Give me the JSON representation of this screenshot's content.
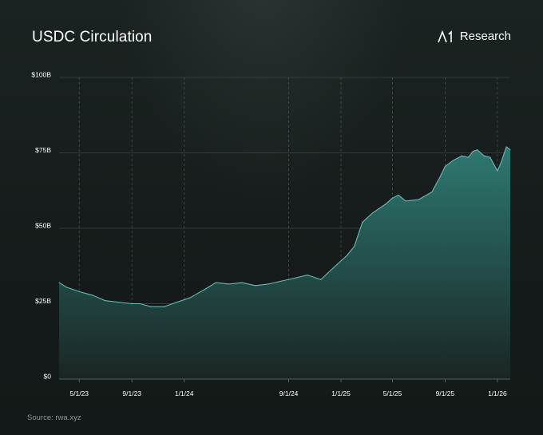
{
  "header": {
    "title": "USDC Circulation",
    "brand": "Research"
  },
  "footer": {
    "source": "Source: rwa.xyz"
  },
  "colors": {
    "accent": "#3fa398",
    "area_top": "#2f7d75",
    "area_bottom": "#1a2625",
    "line": "#5fc1b6",
    "grid": "#3a4442",
    "text": "#ffffff",
    "muted": "#8d9794"
  },
  "chart_data": {
    "type": "area",
    "title": "USDC Circulation",
    "xlabel": "",
    "ylabel": "",
    "ylim": [
      0,
      100
    ],
    "grid": true,
    "y_ticks": [
      "$0",
      "$25B",
      "$50B",
      "$75B",
      "$100B"
    ],
    "x_ticks": [
      "5/1/23",
      "9/1/23",
      "1/1/24",
      "9/1/24",
      "1/1/25",
      "5/1/25",
      "9/1/25",
      "1/1/26"
    ],
    "x_tick_dates": [
      "2023-05-01",
      "2023-09-01",
      "2024-01-01",
      "2024-09-01",
      "2025-01-01",
      "2025-05-01",
      "2025-09-01",
      "2026-01-01"
    ],
    "x_range": [
      "2023-03-15",
      "2026-01-31"
    ],
    "series": [
      {
        "points": [
          [
            "2023-03-15",
            32.0
          ],
          [
            "2023-04-01",
            30.5
          ],
          [
            "2023-05-01",
            29.0
          ],
          [
            "2023-06-01",
            27.8
          ],
          [
            "2023-07-01",
            26.0
          ],
          [
            "2023-08-01",
            25.5
          ],
          [
            "2023-09-01",
            25.0
          ],
          [
            "2023-09-20",
            25.0
          ],
          [
            "2023-10-15",
            24.0
          ],
          [
            "2023-11-15",
            24.0
          ],
          [
            "2023-12-15",
            25.5
          ],
          [
            "2024-01-15",
            27.0
          ],
          [
            "2024-02-15",
            29.5
          ],
          [
            "2024-03-15",
            32.0
          ],
          [
            "2024-04-15",
            31.5
          ],
          [
            "2024-05-15",
            32.0
          ],
          [
            "2024-06-15",
            31.0
          ],
          [
            "2024-07-15",
            31.5
          ],
          [
            "2024-08-15",
            32.5
          ],
          [
            "2024-09-15",
            33.5
          ],
          [
            "2024-10-15",
            34.5
          ],
          [
            "2024-11-15",
            33.0
          ],
          [
            "2024-12-15",
            37.0
          ],
          [
            "2025-01-15",
            41.0
          ],
          [
            "2025-02-01",
            44.0
          ],
          [
            "2025-02-20",
            52.0
          ],
          [
            "2025-03-15",
            55.0
          ],
          [
            "2025-04-15",
            58.0
          ],
          [
            "2025-05-01",
            60.0
          ],
          [
            "2025-05-15",
            61.0
          ],
          [
            "2025-06-01",
            59.0
          ],
          [
            "2025-07-01",
            59.5
          ],
          [
            "2025-08-01",
            62.0
          ],
          [
            "2025-08-20",
            67.0
          ],
          [
            "2025-09-01",
            70.5
          ],
          [
            "2025-09-20",
            72.5
          ],
          [
            "2025-10-10",
            74.0
          ],
          [
            "2025-10-25",
            73.5
          ],
          [
            "2025-11-05",
            75.5
          ],
          [
            "2025-11-15",
            76.0
          ],
          [
            "2025-12-01",
            74.0
          ],
          [
            "2025-12-15",
            73.5
          ],
          [
            "2026-01-01",
            69.0
          ],
          [
            "2026-01-10",
            72.0
          ],
          [
            "2026-01-22",
            77.0
          ],
          [
            "2026-01-31",
            76.0
          ]
        ]
      }
    ],
    "values": [
      32.0,
      30.5,
      29.0,
      27.8,
      26.0,
      25.5,
      25.0,
      25.0,
      24.0,
      24.0,
      25.5,
      27.0,
      29.5,
      32.0,
      31.5,
      32.0,
      31.0,
      31.5,
      32.5,
      33.5,
      34.5,
      33.0,
      37.0,
      41.0,
      44.0,
      52.0,
      55.0,
      58.0,
      60.0,
      61.0,
      59.0,
      59.5,
      62.0,
      67.0,
      70.5,
      72.5,
      74.0,
      73.5,
      75.5,
      76.0,
      74.0,
      73.5,
      69.0,
      72.0,
      77.0,
      76.0
    ]
  }
}
